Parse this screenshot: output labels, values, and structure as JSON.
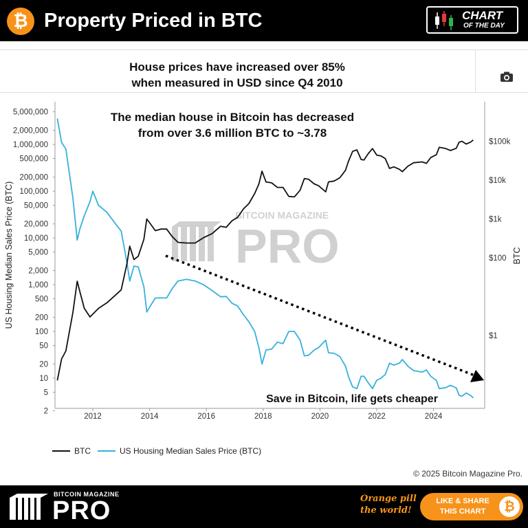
{
  "header": {
    "logo_glyph": "₿",
    "title": "Property Priced in BTC",
    "badge_line1": "CHART",
    "badge_line2": "OF THE DAY"
  },
  "subtitle": {
    "line1": "House prices have increased over 85%",
    "line2": "when measured in USD since Q4 2010"
  },
  "toolbar": {
    "camera_icon": "camera-icon"
  },
  "chart_data": {
    "type": "line",
    "x_ticks": [
      "2012",
      "2014",
      "2016",
      "2018",
      "2020",
      "2022",
      "2024"
    ],
    "y_left": {
      "label": "US Housing Median Sales Price (BTC)",
      "scale": "log",
      "ticks": [
        "5,000,000",
        "2,000,000",
        "1,000,000",
        "500,000",
        "200,000",
        "100,000",
        "50,000",
        "20,000",
        "10,000",
        "5,000",
        "2,000",
        "1,000",
        "500",
        "200",
        "100",
        "50",
        "20",
        "10",
        "5",
        "2"
      ]
    },
    "y_right": {
      "label": "BTC",
      "scale": "log",
      "ticks": [
        "$100k",
        "$10k",
        "$1k",
        "$100",
        "$1"
      ]
    },
    "annotations": [
      "The median house in Bitcoin has decreased",
      "from over 3.6 million BTC to ~3.78",
      "Save in Bitcoin, life gets cheaper"
    ],
    "watermark": {
      "small": "BITCOIN MAGAZINE",
      "big": "PRO"
    },
    "colors": {
      "btc": "#111111",
      "house": "#35b1dc",
      "arrow": "#000000"
    },
    "series": [
      {
        "name": "BTC",
        "axis": "right",
        "points": [
          [
            2010.75,
            0.07
          ],
          [
            2010.9,
            0.25
          ],
          [
            2011.05,
            0.4
          ],
          [
            2011.3,
            4
          ],
          [
            2011.45,
            25
          ],
          [
            2011.55,
            13
          ],
          [
            2011.7,
            5
          ],
          [
            2011.9,
            3
          ],
          [
            2012.2,
            5
          ],
          [
            2012.5,
            7
          ],
          [
            2012.8,
            11
          ],
          [
            2013.0,
            15
          ],
          [
            2013.2,
            70
          ],
          [
            2013.3,
            200
          ],
          [
            2013.45,
            90
          ],
          [
            2013.6,
            110
          ],
          [
            2013.8,
            300
          ],
          [
            2013.9,
            1000
          ],
          [
            2014.0,
            800
          ],
          [
            2014.2,
            500
          ],
          [
            2014.4,
            550
          ],
          [
            2014.6,
            550
          ],
          [
            2014.8,
            350
          ],
          [
            2015.0,
            250
          ],
          [
            2015.3,
            240
          ],
          [
            2015.6,
            240
          ],
          [
            2015.9,
            330
          ],
          [
            2016.2,
            420
          ],
          [
            2016.5,
            650
          ],
          [
            2016.7,
            610
          ],
          [
            2016.9,
            900
          ],
          [
            2017.1,
            1100
          ],
          [
            2017.3,
            1800
          ],
          [
            2017.5,
            2500
          ],
          [
            2017.7,
            4500
          ],
          [
            2017.85,
            8000
          ],
          [
            2017.96,
            17000
          ],
          [
            2018.1,
            9000
          ],
          [
            2018.3,
            8500
          ],
          [
            2018.5,
            6500
          ],
          [
            2018.7,
            6500
          ],
          [
            2018.9,
            3800
          ],
          [
            2019.1,
            3700
          ],
          [
            2019.3,
            5500
          ],
          [
            2019.45,
            11000
          ],
          [
            2019.6,
            10500
          ],
          [
            2019.8,
            8000
          ],
          [
            2019.95,
            7200
          ],
          [
            2020.2,
            5000
          ],
          [
            2020.3,
            9000
          ],
          [
            2020.5,
            9500
          ],
          [
            2020.7,
            11500
          ],
          [
            2020.9,
            18000
          ],
          [
            2021.0,
            30000
          ],
          [
            2021.15,
            55000
          ],
          [
            2021.3,
            60000
          ],
          [
            2021.45,
            34000
          ],
          [
            2021.55,
            33000
          ],
          [
            2021.7,
            48000
          ],
          [
            2021.85,
            65000
          ],
          [
            2022.0,
            44000
          ],
          [
            2022.15,
            42000
          ],
          [
            2022.3,
            36000
          ],
          [
            2022.45,
            20000
          ],
          [
            2022.6,
            22000
          ],
          [
            2022.8,
            19000
          ],
          [
            2022.9,
            16500
          ],
          [
            2023.1,
            23000
          ],
          [
            2023.3,
            28000
          ],
          [
            2023.6,
            29500
          ],
          [
            2023.75,
            27000
          ],
          [
            2023.9,
            38000
          ],
          [
            2024.1,
            45000
          ],
          [
            2024.2,
            70000
          ],
          [
            2024.4,
            66000
          ],
          [
            2024.6,
            58000
          ],
          [
            2024.8,
            66000
          ],
          [
            2024.9,
            95000
          ],
          [
            2025.0,
            100000
          ],
          [
            2025.15,
            85000
          ],
          [
            2025.3,
            95000
          ],
          [
            2025.4,
            108000
          ]
        ]
      },
      {
        "name": "US Housing Median Sales Price (BTC)",
        "axis": "left",
        "points": [
          [
            2010.75,
            3600000
          ],
          [
            2010.9,
            1100000
          ],
          [
            2011.05,
            800000
          ],
          [
            2011.3,
            70000
          ],
          [
            2011.45,
            9000
          ],
          [
            2011.55,
            16000
          ],
          [
            2011.7,
            30000
          ],
          [
            2011.9,
            60000
          ],
          [
            2012.0,
            100000
          ],
          [
            2012.2,
            50000
          ],
          [
            2012.5,
            35000
          ],
          [
            2012.8,
            20000
          ],
          [
            2013.0,
            14000
          ],
          [
            2013.2,
            3000
          ],
          [
            2013.3,
            1200
          ],
          [
            2013.45,
            2500
          ],
          [
            2013.6,
            2400
          ],
          [
            2013.8,
            900
          ],
          [
            2013.9,
            260
          ],
          [
            2014.0,
            330
          ],
          [
            2014.2,
            520
          ],
          [
            2014.4,
            520
          ],
          [
            2014.6,
            520
          ],
          [
            2014.8,
            830
          ],
          [
            2015.0,
            1200
          ],
          [
            2015.3,
            1300
          ],
          [
            2015.6,
            1200
          ],
          [
            2015.9,
            1000
          ],
          [
            2016.2,
            750
          ],
          [
            2016.5,
            550
          ],
          [
            2016.7,
            560
          ],
          [
            2016.9,
            400
          ],
          [
            2017.1,
            350
          ],
          [
            2017.3,
            230
          ],
          [
            2017.5,
            160
          ],
          [
            2017.7,
            100
          ],
          [
            2017.85,
            45
          ],
          [
            2017.96,
            20
          ],
          [
            2018.1,
            40
          ],
          [
            2018.3,
            42
          ],
          [
            2018.5,
            59
          ],
          [
            2018.7,
            55
          ],
          [
            2018.9,
            100
          ],
          [
            2019.1,
            100
          ],
          [
            2019.3,
            65
          ],
          [
            2019.45,
            30
          ],
          [
            2019.6,
            31
          ],
          [
            2019.8,
            40
          ],
          [
            2019.95,
            45
          ],
          [
            2020.2,
            65
          ],
          [
            2020.3,
            35
          ],
          [
            2020.5,
            34
          ],
          [
            2020.7,
            29
          ],
          [
            2020.9,
            18
          ],
          [
            2021.0,
            11
          ],
          [
            2021.15,
            6.5
          ],
          [
            2021.3,
            6
          ],
          [
            2021.45,
            11
          ],
          [
            2021.55,
            11
          ],
          [
            2021.7,
            8
          ],
          [
            2021.85,
            6
          ],
          [
            2022.0,
            9
          ],
          [
            2022.15,
            10
          ],
          [
            2022.3,
            12
          ],
          [
            2022.45,
            21
          ],
          [
            2022.6,
            19
          ],
          [
            2022.8,
            21
          ],
          [
            2022.9,
            25
          ],
          [
            2023.1,
            18
          ],
          [
            2023.3,
            14.5
          ],
          [
            2023.6,
            13.5
          ],
          [
            2023.75,
            15
          ],
          [
            2023.9,
            11
          ],
          [
            2024.1,
            9
          ],
          [
            2024.2,
            6
          ],
          [
            2024.4,
            6.2
          ],
          [
            2024.6,
            7
          ],
          [
            2024.8,
            6.2
          ],
          [
            2024.9,
            4.3
          ],
          [
            2025.0,
            4.1
          ],
          [
            2025.15,
            4.8
          ],
          [
            2025.3,
            4.3
          ],
          [
            2025.4,
            3.78
          ]
        ]
      }
    ]
  },
  "legend": [
    {
      "label": "BTC",
      "color": "#111111"
    },
    {
      "label": "US Housing Median Sales Price (BTC)",
      "color": "#35b1dc"
    }
  ],
  "copyright": "© 2025 Bitcoin Magazine Pro.",
  "footer": {
    "brand_small": "BITCOIN MAGAZINE",
    "brand_big": "PRO",
    "slogan_line1": "Orange pill",
    "slogan_line2": "the world!",
    "cta_line1": "LIKE & SHARE",
    "cta_line2": "THIS CHART",
    "cta_glyph": "₿"
  }
}
